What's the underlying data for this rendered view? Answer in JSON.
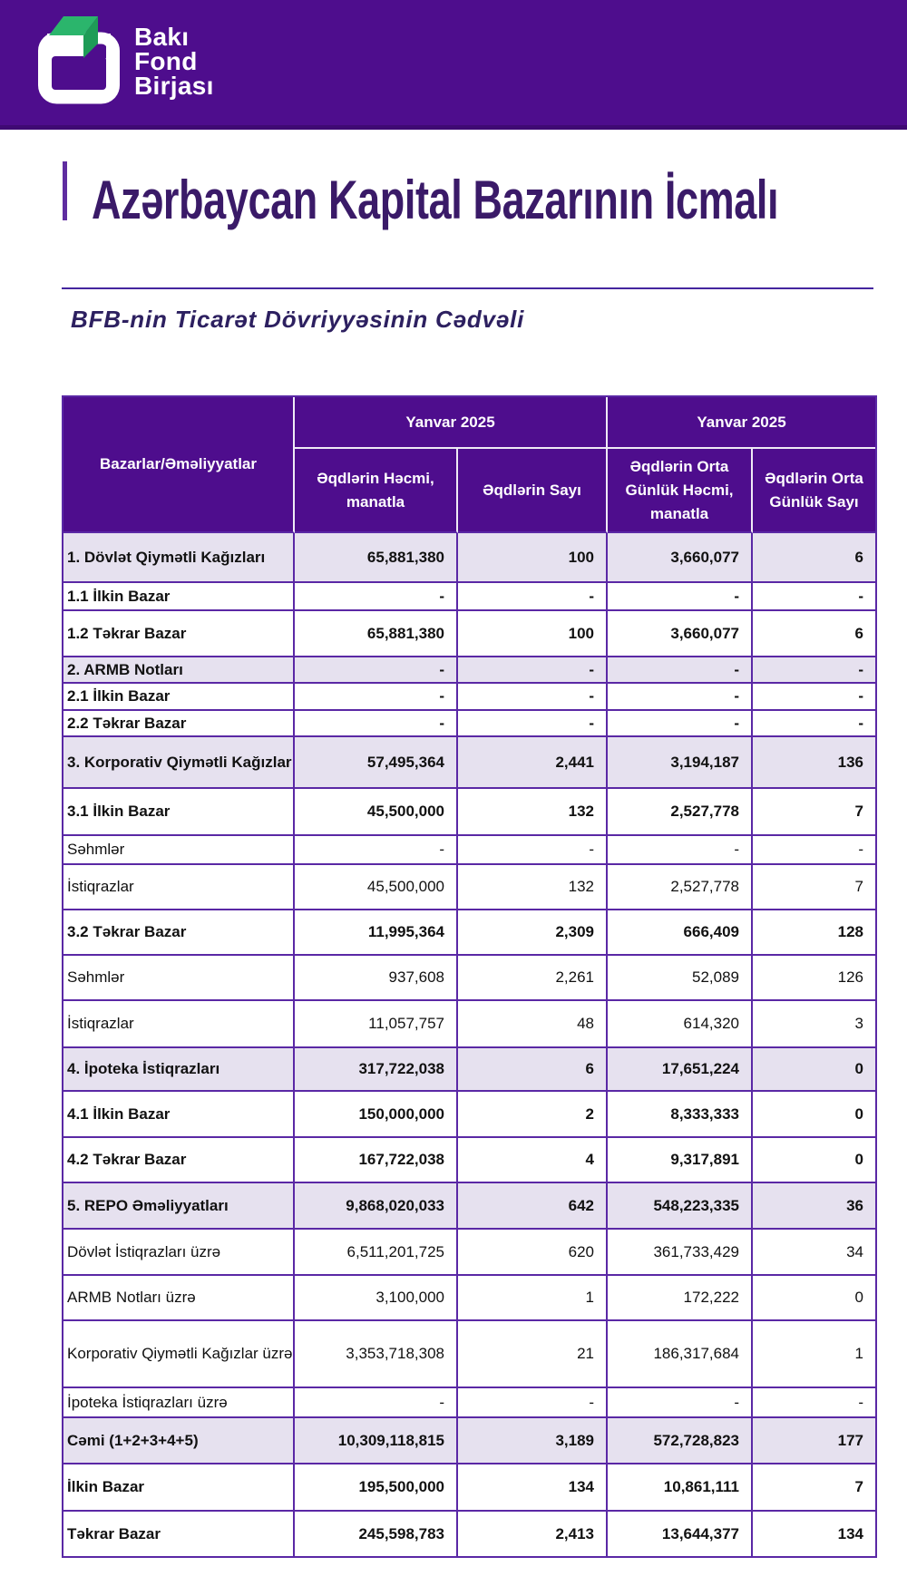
{
  "banner": {
    "brand": [
      "Bakı",
      "Fond",
      "Birjası"
    ]
  },
  "page_title": "Azərbaycan Kapital Bazarının İcmalı",
  "section_title": "BFB-nin Ticarət Dövriyyəsinin Cədvəli",
  "table": {
    "corner_header": "Bazarlar/Əməliyyatlar",
    "groups": [
      {
        "label": "Yanvar 2025",
        "columns": [
          [
            "Əqdlərin Həcmi,",
            "manatla"
          ],
          [
            "Əqdlərin Sayı"
          ]
        ]
      },
      {
        "label": "Yanvar 2025",
        "columns": [
          [
            "Əqdlərin Orta",
            "Günlük Həcmi,",
            "manatla"
          ],
          [
            "Əqdlərin Orta",
            "Günlük Sayı"
          ]
        ]
      }
    ],
    "rows": [
      {
        "label": "1. Dövlət Qiymətli Kağızları",
        "values": [
          "65,881,380",
          "100",
          "3,660,077",
          "6"
        ],
        "style": "section"
      },
      {
        "label": "1.1 İlkin Bazar",
        "values": [
          "-",
          "-",
          "-",
          "-"
        ],
        "style": "bold"
      },
      {
        "label": "1.2 Təkrar Bazar",
        "values": [
          "65,881,380",
          "100",
          "3,660,077",
          "6"
        ],
        "style": "bold"
      },
      {
        "label": "2. ARMB Notları",
        "values": [
          "-",
          "-",
          "-",
          "-"
        ],
        "style": "section"
      },
      {
        "label": "2.1 İlkin Bazar",
        "values": [
          "-",
          "-",
          "-",
          "-"
        ],
        "style": "bold"
      },
      {
        "label": "2.2 Təkrar Bazar",
        "values": [
          "-",
          "-",
          "-",
          "-"
        ],
        "style": "bold"
      },
      {
        "label": "3. Korporativ Qiymətli Kağızlar",
        "values": [
          "57,495,364",
          "2,441",
          "3,194,187",
          "136"
        ],
        "style": "section"
      },
      {
        "label": "3.1 İlkin Bazar",
        "values": [
          "45,500,000",
          "132",
          "2,527,778",
          "7"
        ],
        "style": "bold"
      },
      {
        "label": "Səhmlər",
        "values": [
          "-",
          "-",
          "-",
          "-"
        ],
        "style": "normal"
      },
      {
        "label": "İstiqrazlar",
        "values": [
          "45,500,000",
          "132",
          "2,527,778",
          "7"
        ],
        "style": "normal"
      },
      {
        "label": "3.2 Təkrar Bazar",
        "values": [
          "11,995,364",
          "2,309",
          "666,409",
          "128"
        ],
        "style": "bold"
      },
      {
        "label": "Səhmlər",
        "values": [
          "937,608",
          "2,261",
          "52,089",
          "126"
        ],
        "style": "normal"
      },
      {
        "label": "İstiqrazlar",
        "values": [
          "11,057,757",
          "48",
          "614,320",
          "3"
        ],
        "style": "normal"
      },
      {
        "label": "4. İpoteka İstiqrazları",
        "values": [
          "317,722,038",
          "6",
          "17,651,224",
          "0"
        ],
        "style": "section"
      },
      {
        "label": "4.1 İlkin Bazar",
        "values": [
          "150,000,000",
          "2",
          "8,333,333",
          "0"
        ],
        "style": "bold"
      },
      {
        "label": "4.2 Təkrar Bazar",
        "values": [
          "167,722,038",
          "4",
          "9,317,891",
          "0"
        ],
        "style": "bold"
      },
      {
        "label": "5. REPO Əməliyyatları",
        "values": [
          "9,868,020,033",
          "642",
          "548,223,335",
          "36"
        ],
        "style": "section"
      },
      {
        "label": "Dövlət İstiqrazları üzrə",
        "values": [
          "6,511,201,725",
          "620",
          "361,733,429",
          "34"
        ],
        "style": "normal"
      },
      {
        "label": "ARMB Notları üzrə",
        "values": [
          "3,100,000",
          "1",
          "172,222",
          "0"
        ],
        "style": "normal"
      },
      {
        "label": "Korporativ Qiymətli Kağızlar üzrə",
        "values": [
          "3,353,718,308",
          "21",
          "186,317,684",
          "1"
        ],
        "style": "normal"
      },
      {
        "label": "İpoteka İstiqrazları üzrə",
        "values": [
          "-",
          "-",
          "-",
          "-"
        ],
        "style": "normal"
      },
      {
        "label": "Cəmi (1+2+3+4+5)",
        "values": [
          "10,309,118,815",
          "3,189",
          "572,728,823",
          "177"
        ],
        "style": "section"
      },
      {
        "label": "İlkin Bazar",
        "values": [
          "195,500,000",
          "134",
          "10,861,111",
          "7"
        ],
        "style": "bold"
      },
      {
        "label": "Təkrar Bazar",
        "values": [
          "245,598,783",
          "2,413",
          "13,644,377",
          "134"
        ],
        "style": "bold"
      }
    ]
  },
  "colors": {
    "banner_bg": "#4E0D8D",
    "header_bg": "#4E0D8D",
    "row_highlight_bg": "#E6E1EF",
    "table_border": "#5A28A5",
    "header_divider": "#EFEAF6",
    "title_color": "#3A1A68",
    "subtitle_color": "#2D2060",
    "accent_bar": "#5F2DA0",
    "rule_color": "#44269E",
    "logo_green": "#2BB56C",
    "logo_green_dark": "#1E9C57",
    "brand_text": "#FFFFFF"
  }
}
